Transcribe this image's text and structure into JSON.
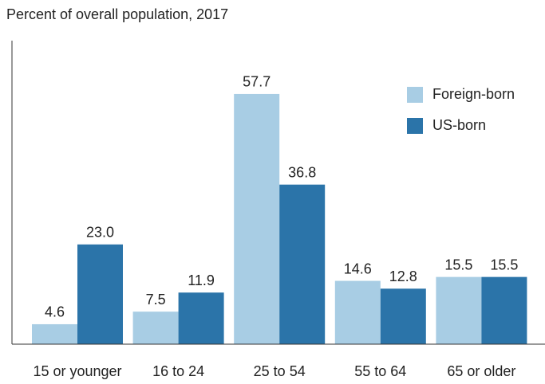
{
  "chart_data": {
    "type": "bar",
    "title": "Percent of overall population, 2017",
    "categories": [
      "15 or younger",
      "16 to 24",
      "25 to 54",
      "55 to 64",
      "65 or older"
    ],
    "series": [
      {
        "name": "Foreign-born",
        "color": "#a8cde4",
        "values": [
          4.6,
          7.5,
          57.7,
          14.6,
          15.5
        ],
        "value_labels": [
          "4.6",
          "7.5",
          "57.7",
          "14.6",
          "15.5"
        ]
      },
      {
        "name": "US-born",
        "color": "#2b74a9",
        "values": [
          23,
          11.9,
          36.8,
          12.8,
          15.5
        ],
        "value_labels": [
          "23.0",
          "11.9",
          "36.8",
          "12.8",
          "15.5"
        ]
      }
    ],
    "ylim": [
      0,
      70
    ],
    "legend": "upper right"
  }
}
